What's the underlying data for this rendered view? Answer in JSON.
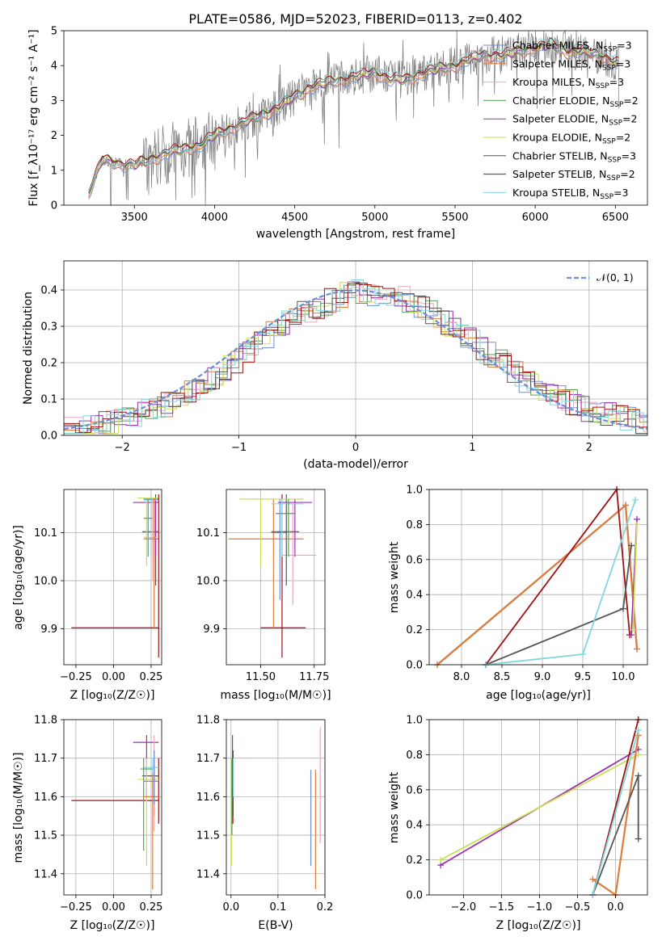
{
  "colors": {
    "Chabrier MILES": "#6a8fd8",
    "Salpeter MILES": "#e07b39",
    "Kroupa MILES": "#e8a9c0",
    "Chabrier ELODIE": "#5a9e5a",
    "Salpeter ELODIE": "#9b30b0",
    "Kroupa ELODIE": "#c9e050",
    "Chabrier STELIB": "#555555",
    "Salpeter STELIB": "#a01010",
    "Kroupa STELIB": "#80d8dc",
    "data": "#7a7a7a"
  },
  "chart_data": [
    {
      "type": "line",
      "title": "PLATE=0586, MJD=52023, FIBERID=0113, z=0.402",
      "xlabel": "wavelength [Angstrom, rest frame]",
      "ylabel": "Flux [f_λ10⁻¹⁷ erg cm⁻² s⁻¹ A⁻¹]",
      "xlim": [
        3060,
        6700
      ],
      "ylim": [
        0,
        5
      ],
      "xticks": [
        "3500",
        "4000",
        "4500",
        "5000",
        "5500",
        "6000",
        "6500"
      ],
      "yticks": [
        "0",
        "1",
        "2",
        "3",
        "4",
        "5"
      ],
      "legend_position": "top-right",
      "data_series": {
        "name": "",
        "x": [
          3210,
          3300,
          3400,
          3500,
          3600,
          3700,
          3800,
          3900,
          4000,
          4100,
          4200,
          4300,
          4400,
          4500,
          4600,
          4700,
          4800,
          4900,
          5000,
          5100,
          5200,
          5300,
          5400,
          5500,
          5600,
          5700,
          5800,
          5900,
          6000,
          6100,
          6200,
          6300,
          6400,
          6500,
          6530
        ],
        "y": [
          0.3,
          1.3,
          1.2,
          1.15,
          1.3,
          1.5,
          1.6,
          1.7,
          2.0,
          2.2,
          2.4,
          2.6,
          2.8,
          3.1,
          3.4,
          3.5,
          3.6,
          3.7,
          3.8,
          3.6,
          3.6,
          3.8,
          3.9,
          4.0,
          4.2,
          4.3,
          4.3,
          4.4,
          4.5,
          4.6,
          4.4,
          4.4,
          4.3,
          4.1,
          4.0
        ]
      },
      "series": [
        {
          "name": "Chabrier MILES, N_SSP=3",
          "label_main": "Chabrier MILES, N",
          "label_sub": "SSP",
          "label_end": "=3"
        },
        {
          "name": "Salpeter MILES, N_SSP=3",
          "label_main": "Salpeter MILES, N",
          "label_sub": "SSP",
          "label_end": "=3"
        },
        {
          "name": "Kroupa MILES, N_SSP=3",
          "label_main": "Kroupa MILES, N",
          "label_sub": "SSP",
          "label_end": "=3"
        },
        {
          "name": "Chabrier ELODIE, N_SSP=2",
          "label_main": "Chabrier ELODIE, N",
          "label_sub": "SSP",
          "label_end": "=2"
        },
        {
          "name": "Salpeter ELODIE, N_SSP=2",
          "label_main": "Salpeter ELODIE, N",
          "label_sub": "SSP",
          "label_end": "=2"
        },
        {
          "name": "Kroupa ELODIE, N_SSP=2",
          "label_main": "Kroupa ELODIE, N",
          "label_sub": "SSP",
          "label_end": "=2"
        },
        {
          "name": "Chabrier STELIB, N_SSP=3",
          "label_main": "Chabrier STELIB, N",
          "label_sub": "SSP",
          "label_end": "=3"
        },
        {
          "name": "Salpeter STELIB, N_SSP=2",
          "label_main": "Salpeter STELIB, N",
          "label_sub": "SSP",
          "label_end": "=2"
        },
        {
          "name": "Kroupa STELIB, N_SSP=3",
          "label_main": "Kroupa STELIB, N",
          "label_sub": "SSP",
          "label_end": "=3"
        }
      ]
    },
    {
      "type": "line",
      "xlabel": "(data-model)/error",
      "ylabel": "Normed distribution",
      "xlim": [
        -2.5,
        2.5
      ],
      "ylim": [
        0,
        0.48
      ],
      "xticks": [
        "−2",
        "−1",
        "0",
        "1",
        "2"
      ],
      "yticks": [
        "0.0",
        "0.1",
        "0.2",
        "0.3",
        "0.4"
      ],
      "grid": true,
      "legend": "𝒩(0, 1)",
      "legend_position": "top-right",
      "reference_curve": "normal(0,1)",
      "histogram_envelope": {
        "x": [
          -2.5,
          -2.0,
          -1.5,
          -1.0,
          -0.5,
          0.0,
          0.5,
          1.0,
          1.5,
          2.0,
          2.5
        ],
        "y": [
          0.015,
          0.04,
          0.1,
          0.21,
          0.33,
          0.4,
          0.37,
          0.26,
          0.14,
          0.07,
          0.03
        ]
      }
    },
    {
      "type": "scatter",
      "xlabel": "Z [log₁₀(Z/Z☉)]",
      "ylabel": "age  [log₁₀(age/yr)]",
      "xlim": [
        -0.33,
        0.32
      ],
      "ylim": [
        9.825,
        10.19
      ],
      "xticks": [
        "−0.25",
        "0.00",
        "0.25"
      ],
      "yticks": [
        "9.9",
        "10.0",
        "10.1"
      ],
      "grid": true
    },
    {
      "type": "scatter",
      "xlabel": "mass [log₁₀(M/M☉)]",
      "xlim": [
        11.34,
        11.8
      ],
      "ylim": [
        9.825,
        10.19
      ],
      "xticks": [
        "11.50",
        "11.75"
      ],
      "yticks": [
        "9.9",
        "10.0",
        "10.1"
      ],
      "grid": true
    },
    {
      "type": "line",
      "xlabel": "age  [log₁₀(age/yr)]",
      "ylabel": "mass weight",
      "xlim": [
        7.6,
        10.3
      ],
      "ylim": [
        0,
        1
      ],
      "xticks": [
        "8.0",
        "8.5",
        "9.0",
        "9.5",
        "10.0"
      ],
      "yticks": [
        "0.0",
        "0.2",
        "0.4",
        "0.6",
        "0.8",
        "1.0"
      ],
      "grid": true,
      "lines": [
        {
          "model": "Chabrier MILES",
          "x": [
            7.7,
            10.03,
            10.17
          ],
          "y": [
            0.0,
            0.91,
            0.09
          ]
        },
        {
          "model": "Salpeter MILES",
          "x": [
            7.7,
            10.03,
            10.17
          ],
          "y": [
            0.0,
            0.91,
            0.09
          ]
        },
        {
          "model": "Salpeter STELIB",
          "x": [
            8.3,
            9.92,
            10.08
          ],
          "y": [
            0.0,
            1.0,
            0.17
          ]
        },
        {
          "model": "Chabrier STELIB",
          "x": [
            8.3,
            10.0,
            10.1
          ],
          "y": [
            0.0,
            0.32,
            0.68
          ]
        },
        {
          "model": "Kroupa STELIB",
          "x": [
            8.3,
            9.5,
            10.15
          ],
          "y": [
            0.0,
            0.06,
            0.94
          ]
        },
        {
          "model": "Salpeter ELODIE",
          "x": [
            10.1,
            10.17
          ],
          "y": [
            0.17,
            0.83
          ]
        },
        {
          "model": "Kroupa ELODIE",
          "x": [
            10.12,
            10.17
          ],
          "y": [
            0.2,
            0.8
          ]
        }
      ]
    },
    {
      "type": "scatter",
      "xlabel": "Z [log₁₀(Z/Z☉)]",
      "ylabel": "mass [log₁₀(M/M☉)]",
      "xlim": [
        -0.33,
        0.32
      ],
      "ylim": [
        11.345,
        11.8
      ],
      "xticks": [
        "−0.25",
        "0.00",
        "0.25"
      ],
      "yticks": [
        "11.4",
        "11.5",
        "11.6",
        "11.7",
        "11.8"
      ],
      "grid": true
    },
    {
      "type": "scatter",
      "xlabel": "E(B-V)",
      "xlim": [
        -0.01,
        0.2
      ],
      "ylim": [
        11.345,
        11.8
      ],
      "xticks": [
        "0.0",
        "0.1",
        "0.2"
      ],
      "yticks": [
        "11.4",
        "11.5",
        "11.6",
        "11.7",
        "11.8"
      ],
      "grid": true
    },
    {
      "type": "line",
      "xlabel": "Z [log₁₀(Z/Z☉)]",
      "ylabel": "mass weight",
      "xlim": [
        -2.45,
        0.42
      ],
      "ylim": [
        0,
        1
      ],
      "xticks": [
        "−2.0",
        "−1.5",
        "−1.0",
        "−0.5",
        "0.0"
      ],
      "yticks": [
        "0.0",
        "0.2",
        "0.4",
        "0.6",
        "0.8",
        "1.0"
      ],
      "grid": true,
      "lines": [
        {
          "model": "Salpeter ELODIE",
          "x": [
            -2.3,
            0.3
          ],
          "y": [
            0.17,
            0.83
          ]
        },
        {
          "model": "Kroupa ELODIE",
          "x": [
            -2.3,
            0.3
          ],
          "y": [
            0.2,
            0.8
          ]
        },
        {
          "model": "Salpeter MILES",
          "x": [
            -0.3,
            0.0,
            0.3
          ],
          "y": [
            0.09,
            0.0,
            0.91
          ]
        },
        {
          "model": "Chabrier STELIB",
          "x": [
            -0.3,
            0.3,
            0.3
          ],
          "y": [
            0.0,
            0.68,
            0.32
          ]
        },
        {
          "model": "Salpeter STELIB",
          "x": [
            -0.3,
            0.3
          ],
          "y": [
            0.0,
            1.0
          ]
        },
        {
          "model": "Kroupa STELIB",
          "x": [
            -0.3,
            0.3
          ],
          "y": [
            0.0,
            0.94
          ]
        }
      ]
    }
  ]
}
